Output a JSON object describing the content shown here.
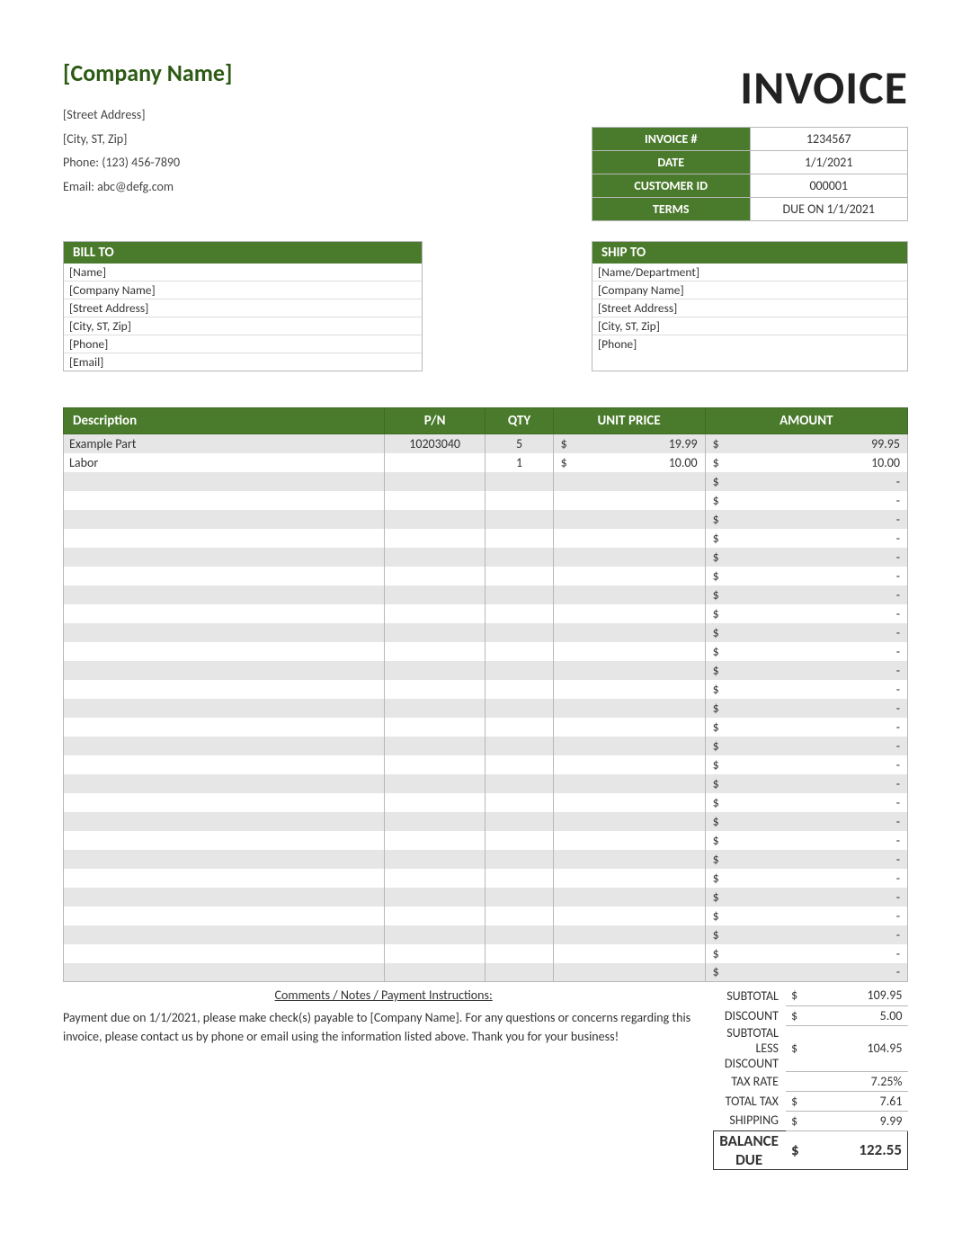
{
  "company": {
    "name": "[Company Name]",
    "street": "[Street Address]",
    "city": "[City, ST, Zip]",
    "phone": "Phone: (123) 456-7890",
    "email": "Email: abc@defg.com"
  },
  "invoice_title": "INVOICE",
  "meta": {
    "labels": {
      "invoice_no": "INVOICE #",
      "date": "DATE",
      "customer_id": "CUSTOMER ID",
      "terms": "TERMS"
    },
    "invoice_no": "1234567",
    "date": "1/1/2021",
    "customer_id": "000001",
    "terms": "DUE ON  1/1/2021"
  },
  "bill_to": {
    "header": "BILL TO",
    "lines": [
      "[Name]",
      "[Company Name]",
      "[Street Address]",
      "[City, ST, Zip]",
      "[Phone]",
      "[Email]"
    ]
  },
  "ship_to": {
    "header": "SHIP TO",
    "lines": [
      "[Name/Department]",
      "[Company Name]",
      "[Street Address]",
      "[City, ST, Zip]",
      "[Phone]"
    ]
  },
  "table": {
    "headers": {
      "desc": "Description",
      "pn": "P/N",
      "qty": "QTY",
      "price": "UNIT PRICE",
      "amount": "AMOUNT"
    },
    "currency": "$",
    "dash": "-",
    "row_count": 29,
    "rows": [
      {
        "desc": "Example Part",
        "pn": "10203040",
        "qty": "5",
        "price": "19.99",
        "amount": "99.95"
      },
      {
        "desc": "Labor",
        "pn": "",
        "qty": "1",
        "price": "10.00",
        "amount": "10.00"
      }
    ]
  },
  "comments": {
    "header": "Comments / Notes / Payment Instructions:",
    "text": "Payment due on 1/1/2021, please make check(s) payable to [Company Name].  For any questions or concerns regarding this invoice, please contact us by phone or email using the information listed above.  Thank you for your business!"
  },
  "totals": {
    "currency": "$",
    "lines": [
      {
        "label": "SUBTOTAL",
        "cur": true,
        "value": "109.95"
      },
      {
        "label": "DISCOUNT",
        "cur": true,
        "value": "5.00"
      },
      {
        "label": "SUBTOTAL LESS DISCOUNT",
        "cur": true,
        "value": "104.95"
      },
      {
        "label": "TAX RATE",
        "cur": false,
        "value": "7.25%"
      },
      {
        "label": "TOTAL TAX",
        "cur": true,
        "value": "7.61"
      },
      {
        "label": "SHIPPING",
        "cur": true,
        "value": "9.99"
      }
    ],
    "balance": {
      "label": "BALANCE DUE",
      "value": "122.55"
    }
  },
  "colors": {
    "header_green": "#4a7a2c",
    "alt_row": "#e6e6e6",
    "grid": "#b8b8b8"
  }
}
